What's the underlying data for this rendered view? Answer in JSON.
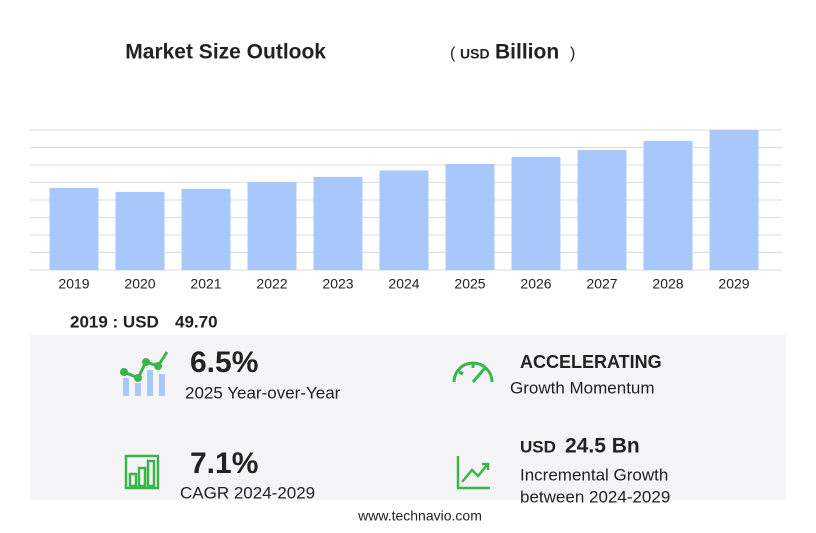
{
  "chart_data": {
    "type": "bar",
    "title": "Market Size Outlook",
    "unit": {
      "open": "(",
      "currency": "USD",
      "name": "Billion",
      "close": ")"
    },
    "categories": [
      "2019",
      "2020",
      "2021",
      "2022",
      "2023",
      "2024",
      "2025",
      "2026",
      "2027",
      "2028",
      "2029"
    ],
    "values": [
      49.7,
      47.3,
      49.1,
      53.3,
      56.4,
      60.3,
      64.2,
      68.5,
      72.7,
      78.2,
      84.8
    ],
    "color": "#a8c8fc",
    "ylim": [
      0,
      84.8
    ],
    "grid": true
  },
  "highlight": {
    "label": "2019 : USD",
    "value": "49.70"
  },
  "stats": {
    "yoy": {
      "value": "6.5%",
      "label": "2025 Year-over-Year"
    },
    "momentum": {
      "value": "ACCELERATING",
      "label": "Growth Momentum"
    },
    "cagr": {
      "value": "7.1%",
      "label": "CAGR 2024-2029"
    },
    "incremental": {
      "currency": "USD",
      "value": "24.5 Bn",
      "label1": "Incremental Growth",
      "label2": "between 2024-2029"
    }
  },
  "footer": "www.technavio.com"
}
